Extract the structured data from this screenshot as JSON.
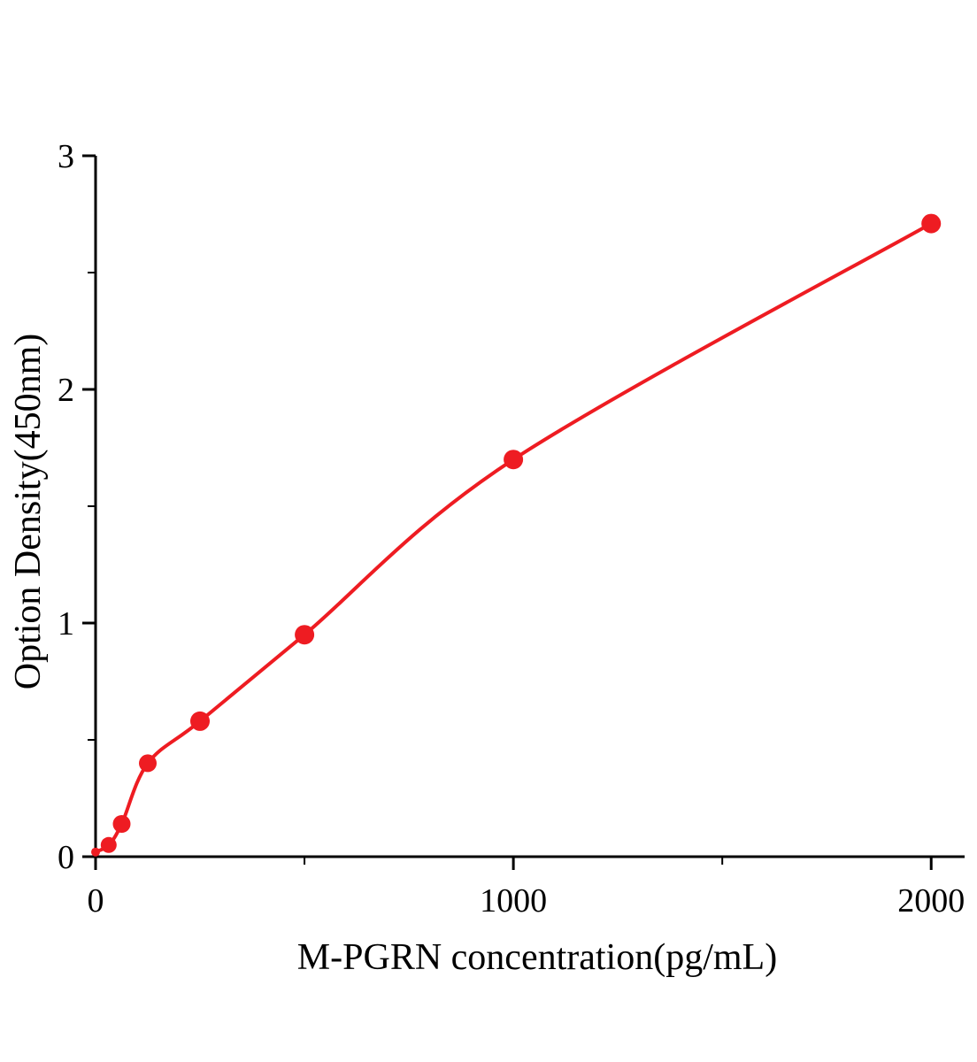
{
  "chart_data": {
    "type": "scatter",
    "title": "",
    "xlabel": "M-PGRN concentration(pg/mL)",
    "ylabel": "Option Density(450nm)",
    "xlim": [
      0,
      2080
    ],
    "ylim": [
      0,
      3
    ],
    "x_major_ticks": [
      0,
      1000,
      2000
    ],
    "x_minor_ticks": [
      500,
      1500
    ],
    "y_major_ticks": [
      0,
      1,
      2,
      3
    ],
    "y_minor_ticks": [
      0.5,
      1.5,
      2.5
    ],
    "grid": "off",
    "legend": "none",
    "points": [
      {
        "x": 0,
        "y": 0.02,
        "r": 5
      },
      {
        "x": 31.25,
        "y": 0.05,
        "r": 9
      },
      {
        "x": 62.5,
        "y": 0.14,
        "r": 10
      },
      {
        "x": 125,
        "y": 0.4,
        "r": 10
      },
      {
        "x": 250,
        "y": 0.58,
        "r": 11
      },
      {
        "x": 500,
        "y": 0.95,
        "r": 11
      },
      {
        "x": 1000,
        "y": 1.7,
        "r": 11
      },
      {
        "x": 2000,
        "y": 2.71,
        "r": 11
      }
    ],
    "curve_color": "#ee1c22",
    "point_color": "#ee1c22",
    "axis_color": "#000000"
  }
}
